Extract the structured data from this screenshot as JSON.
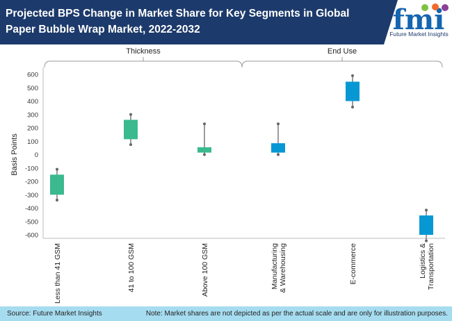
{
  "header": {
    "title": "Projected BPS Change in Market Share for Key Segments in Global Paper Bubble Wrap Market, 2022-2032"
  },
  "logo": {
    "text": "fmi",
    "tagline": "Future Market Insights"
  },
  "footer": {
    "source": "Source: Future Market Insights",
    "note": "Note: Market shares are not depicted as per the actual scale and are only for illustration purposes."
  },
  "chart_data": {
    "type": "candlestick",
    "title": "Projected BPS Change in Market Share for Key Segments in Global Paper Bubble Wrap Market, 2022-2032",
    "ylabel": "Basis Points",
    "ylim": [
      -600,
      600
    ],
    "yticks": [
      600,
      500,
      400,
      300,
      200,
      100,
      0,
      -100,
      -200,
      -300,
      -400,
      -500,
      -600
    ],
    "grid": false,
    "groups": [
      {
        "label": "Thickness",
        "categories": [
          0,
          1,
          2
        ]
      },
      {
        "label": "End Use",
        "categories": [
          3,
          4,
          5
        ]
      }
    ],
    "categories": [
      "Less than 41 GSM",
      "41 to 100 GSM",
      "Above 100 GSM",
      "Manufacturing & Warehousing",
      "E-commerce",
      "Logistics & Transportation"
    ],
    "category_lines": [
      [
        "Less than 41 GSM"
      ],
      [
        "41 to 100 GSM"
      ],
      [
        "Above 100 GSM"
      ],
      [
        "Manufacturing",
        "& Warehousing"
      ],
      [
        "E-commerce"
      ],
      [
        "Logistics &",
        "Transportation"
      ]
    ],
    "series": [
      {
        "high": -110,
        "box_high": -150,
        "box_low": -300,
        "low": -340
      },
      {
        "high": 300,
        "box_high": 260,
        "box_low": 115,
        "low": 75
      },
      {
        "high": 230,
        "box_high": 55,
        "box_low": 15,
        "low": 0
      },
      {
        "high": 230,
        "box_high": 85,
        "box_low": 15,
        "low": 0
      },
      {
        "high": 590,
        "box_high": 545,
        "box_low": 400,
        "low": 355
      },
      {
        "high": -415,
        "box_high": -455,
        "box_low": -600,
        "low": -645
      }
    ],
    "colors": {
      "Thickness": "#3bb98f",
      "End Use": "#0798d4",
      "whisker": "#666666"
    }
  }
}
